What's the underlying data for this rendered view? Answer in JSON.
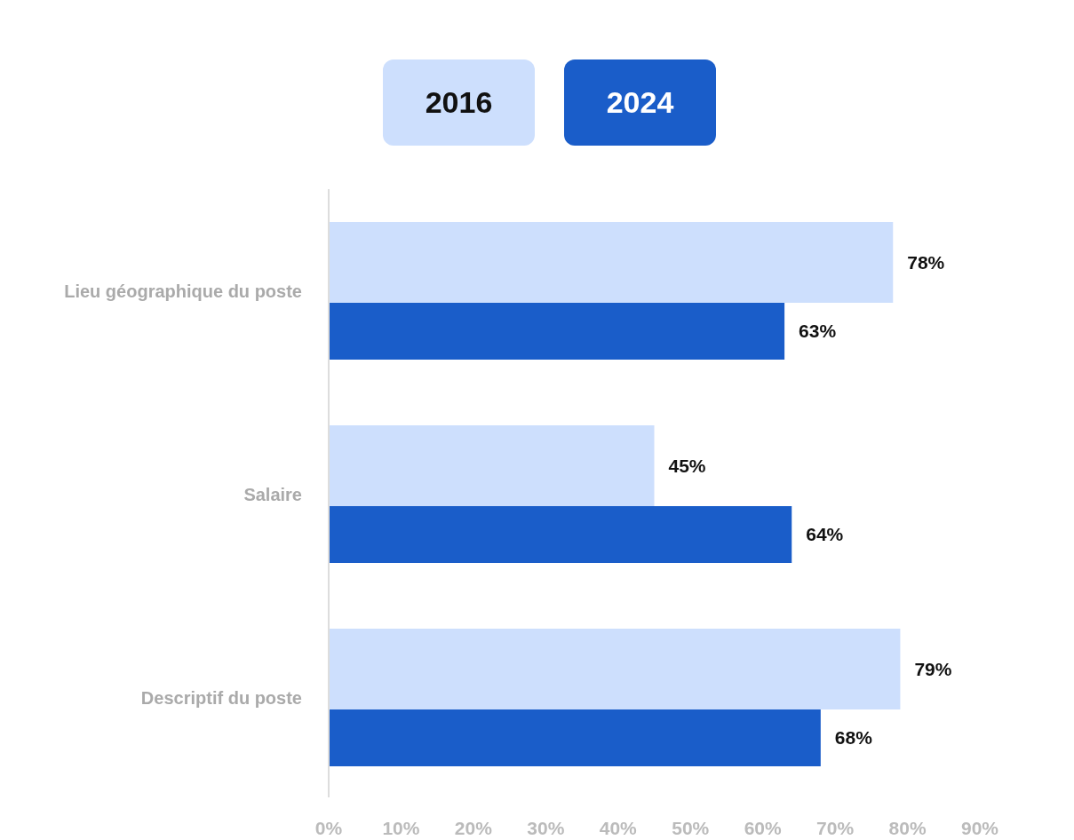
{
  "chart_data": {
    "type": "bar",
    "orientation": "horizontal",
    "categories": [
      "Lieu géographique du poste",
      "Salaire",
      "Descriptif du poste"
    ],
    "series": [
      {
        "name": "2016",
        "color": "#cddffd",
        "values": [
          78,
          45,
          79
        ]
      },
      {
        "name": "2024",
        "color": "#1a5dc9",
        "values": [
          63,
          64,
          68
        ]
      }
    ],
    "xlim": [
      0,
      90
    ],
    "xticks": [
      {
        "value": 0,
        "label": "0%"
      },
      {
        "value": 10,
        "label": "10%"
      },
      {
        "value": 20,
        "label": "20%"
      },
      {
        "value": 30,
        "label": "30%"
      },
      {
        "value": 40,
        "label": "40%"
      },
      {
        "value": 50,
        "label": "50%"
      },
      {
        "value": 60,
        "label": "60%"
      },
      {
        "value": 70,
        "label": "70%"
      },
      {
        "value": 80,
        "label": "80%"
      },
      {
        "value": 90,
        "label": "90%"
      }
    ],
    "value_labels": [
      [
        "78%",
        "45%",
        "79%"
      ],
      [
        "63%",
        "64%",
        "68%"
      ]
    ],
    "legend": "top left",
    "grid": false
  }
}
